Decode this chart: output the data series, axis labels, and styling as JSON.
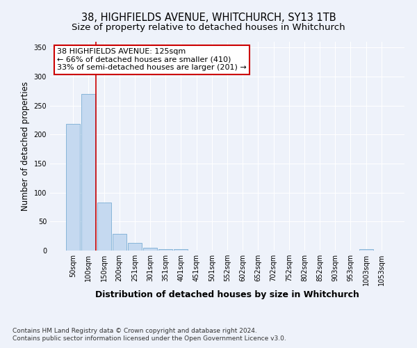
{
  "title": "38, HIGHFIELDS AVENUE, WHITCHURCH, SY13 1TB",
  "subtitle": "Size of property relative to detached houses in Whitchurch",
  "xlabel": "Distribution of detached houses by size in Whitchurch",
  "ylabel": "Number of detached properties",
  "categories": [
    "50sqm",
    "100sqm",
    "150sqm",
    "200sqm",
    "251sqm",
    "301sqm",
    "351sqm",
    "401sqm",
    "451sqm",
    "501sqm",
    "552sqm",
    "602sqm",
    "652sqm",
    "702sqm",
    "752sqm",
    "802sqm",
    "852sqm",
    "903sqm",
    "953sqm",
    "1003sqm",
    "1053sqm"
  ],
  "values": [
    218,
    270,
    83,
    29,
    13,
    5,
    3,
    3,
    0,
    0,
    0,
    0,
    0,
    0,
    0,
    0,
    0,
    0,
    0,
    3,
    0
  ],
  "bar_color": "#c5d9f0",
  "bar_edge_color": "#7aadd4",
  "vline_x_index": 1.5,
  "vline_color": "#cc0000",
  "annotation_text": "38 HIGHFIELDS AVENUE: 125sqm\n← 66% of detached houses are smaller (410)\n33% of semi-detached houses are larger (201) →",
  "annotation_box_facecolor": "#ffffff",
  "annotation_box_edgecolor": "#cc0000",
  "ylim": [
    0,
    360
  ],
  "yticks": [
    0,
    50,
    100,
    150,
    200,
    250,
    300,
    350
  ],
  "footer_line1": "Contains HM Land Registry data © Crown copyright and database right 2024.",
  "footer_line2": "Contains public sector information licensed under the Open Government Licence v3.0.",
  "bg_color": "#eef2fa",
  "grid_color": "#ffffff",
  "title_fontsize": 10.5,
  "subtitle_fontsize": 9.5,
  "ylabel_fontsize": 8.5,
  "xlabel_fontsize": 9,
  "tick_fontsize": 7,
  "annotation_fontsize": 8,
  "footer_fontsize": 6.5
}
